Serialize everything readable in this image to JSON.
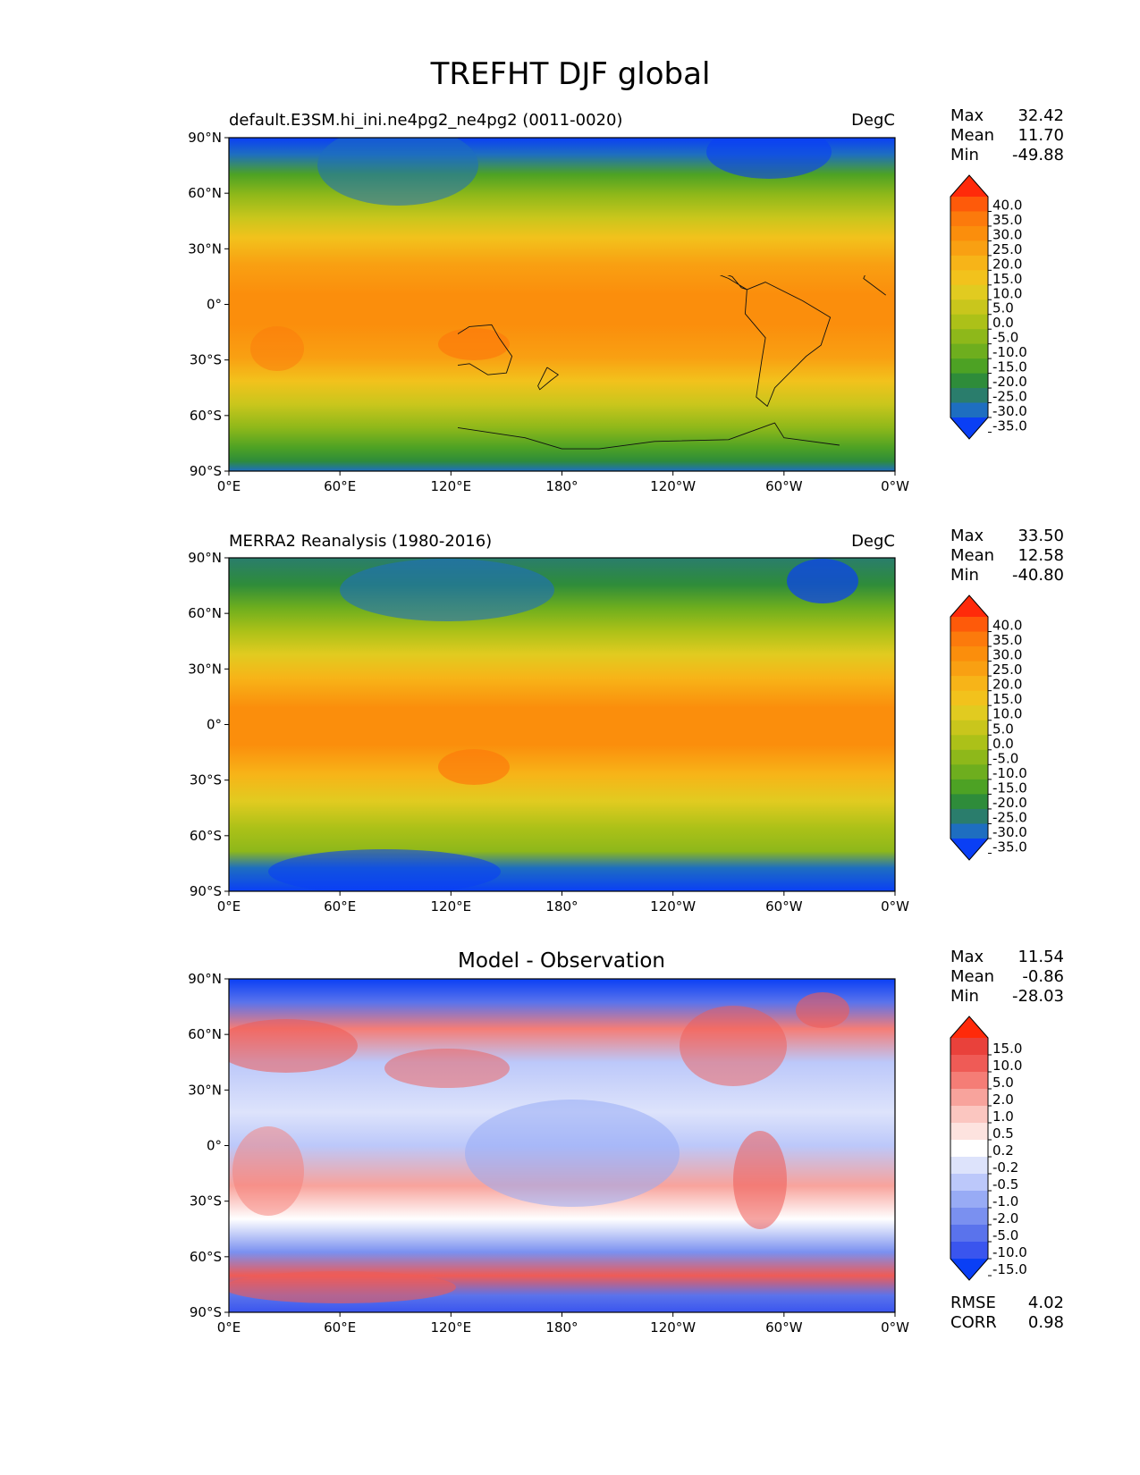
{
  "figure": {
    "title": "TREFHT DJF global"
  },
  "panels": [
    {
      "id": "model",
      "left_title": "default.E3SM.hi_ini.ne4pg2_ne4pg2 (0011-0020)",
      "center_title": "",
      "right_title": "DegC",
      "stats": [
        {
          "label": "Max",
          "value": "32.42"
        },
        {
          "label": "Mean",
          "value": "11.70"
        },
        {
          "label": "Min",
          "value": "-49.88"
        }
      ],
      "colorbar": "temp"
    },
    {
      "id": "obs",
      "left_title": "MERRA2 Reanalysis (1980-2016)",
      "center_title": "",
      "right_title": "DegC",
      "stats": [
        {
          "label": "Max",
          "value": "33.50"
        },
        {
          "label": "Mean",
          "value": "12.58"
        },
        {
          "label": "Min",
          "value": "-40.80"
        }
      ],
      "colorbar": "temp"
    },
    {
      "id": "diff",
      "left_title": "",
      "center_title": "Model - Observation",
      "right_title": "",
      "stats": [
        {
          "label": "Max",
          "value": "11.54"
        },
        {
          "label": "Mean",
          "value": "-0.86"
        },
        {
          "label": "Min",
          "value": "-28.03"
        }
      ],
      "colorbar": "diff",
      "metrics": [
        {
          "label": "RMSE",
          "value": "4.02"
        },
        {
          "label": "CORR",
          "value": "0.98"
        }
      ]
    }
  ],
  "axes": {
    "x_ticks": [
      "0°E",
      "60°E",
      "120°E",
      "180°",
      "120°W",
      "60°W",
      "0°W"
    ],
    "y_ticks": [
      "90°N",
      "60°N",
      "30°N",
      "0°",
      "30°S",
      "60°S",
      "90°S"
    ]
  },
  "colorbars": {
    "temp": {
      "labels": [
        "40.0",
        "35.0",
        "30.0",
        "25.0",
        "20.0",
        "15.0",
        "10.0",
        "5.0",
        "0.0",
        "-5.0",
        "-10.0",
        "-15.0",
        "-20.0",
        "-25.0",
        "-30.0",
        "-35.0"
      ],
      "colors": [
        "#ff2a0a",
        "#fe5a0a",
        "#fc7a0c",
        "#fb8e0c",
        "#f9a012",
        "#f7b418",
        "#f2c21c",
        "#e1cb20",
        "#c9c61c",
        "#acc118",
        "#8eb81a",
        "#6eae1e",
        "#4da224",
        "#2e8c3a",
        "#2a7d6c",
        "#1e6ec0",
        "#0a3ff5"
      ]
    },
    "diff": {
      "labels": [
        "15.0",
        "10.0",
        "5.0",
        "2.0",
        "1.0",
        "0.5",
        "0.2",
        "-0.2",
        "-0.5",
        "-1.0",
        "-2.0",
        "-5.0",
        "-10.0",
        "-15.0"
      ],
      "colors": [
        "#ff2a0a",
        "#e9413b",
        "#ef5b56",
        "#f57d76",
        "#f8a39c",
        "#fbc6c0",
        "#fde3df",
        "#ffffff",
        "#dde3fb",
        "#bcc8fa",
        "#98abf5",
        "#7a90f0",
        "#5a73ec",
        "#3a55ee",
        "#0a3ff5"
      ]
    }
  }
}
